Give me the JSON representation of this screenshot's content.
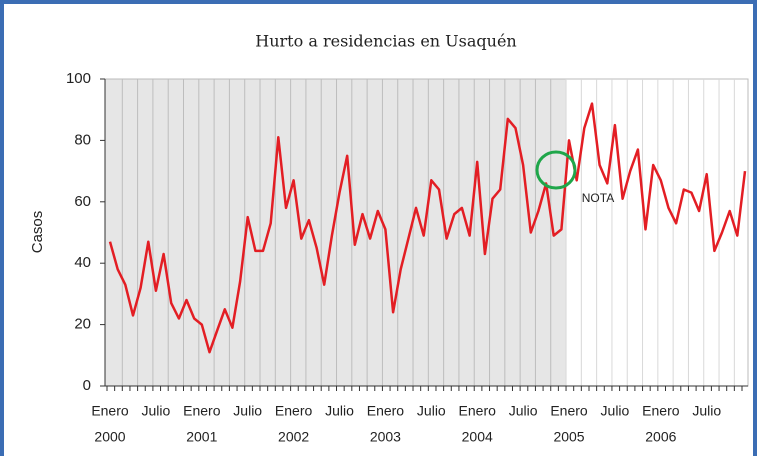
{
  "chart_data": {
    "type": "line",
    "title": "Hurto a residencias en Usaquén",
    "y_label": "Casos",
    "annotation": "NOTA",
    "categories": [
      "Enero",
      null,
      null,
      null,
      null,
      null,
      "Julio",
      null,
      null,
      null,
      null,
      null,
      "Enero",
      null,
      null,
      null,
      null,
      null,
      "Julio",
      null,
      null,
      null,
      null,
      null,
      "Enero",
      null,
      null,
      null,
      null,
      null,
      "Julio",
      null,
      null,
      null,
      null,
      null,
      "Enero",
      null,
      null,
      null,
      null,
      null,
      "Julio",
      null,
      null,
      null,
      null,
      null,
      "Enero",
      null,
      null,
      null,
      null,
      null,
      "Julio",
      null,
      null,
      null,
      null,
      null,
      "Enero",
      null,
      null,
      null,
      null,
      null,
      "Julio",
      null,
      null,
      null,
      null,
      null,
      "Enero",
      null,
      null,
      null,
      null,
      null,
      "Julio",
      null,
      null,
      null,
      null,
      null
    ],
    "years": [
      "2000",
      "2001",
      "2002",
      "2003",
      "2004",
      "2005",
      "2006"
    ],
    "series": [
      {
        "name": "Casos",
        "color": "#e31e24",
        "values": [
          47,
          38,
          33,
          23,
          32,
          47,
          31,
          43,
          27,
          22,
          28,
          22,
          20,
          11,
          18,
          25,
          19,
          34,
          55,
          44,
          44,
          53,
          81,
          58,
          67,
          48,
          54,
          45,
          33,
          49,
          63,
          75,
          46,
          56,
          48,
          57,
          51,
          24,
          38,
          48,
          58,
          49,
          67,
          64,
          48,
          56,
          58,
          49,
          73,
          43,
          61,
          64,
          87,
          84,
          72,
          50,
          57,
          66,
          49,
          51,
          80,
          67,
          84,
          92,
          72,
          66,
          85,
          61,
          70,
          77,
          51,
          72,
          67,
          58,
          53,
          64,
          63,
          57,
          69,
          44,
          50,
          57,
          49,
          70
        ]
      }
    ],
    "ylim": [
      0,
      100
    ],
    "yticks": [
      0,
      20,
      40,
      60,
      80,
      100
    ],
    "grid": true
  }
}
